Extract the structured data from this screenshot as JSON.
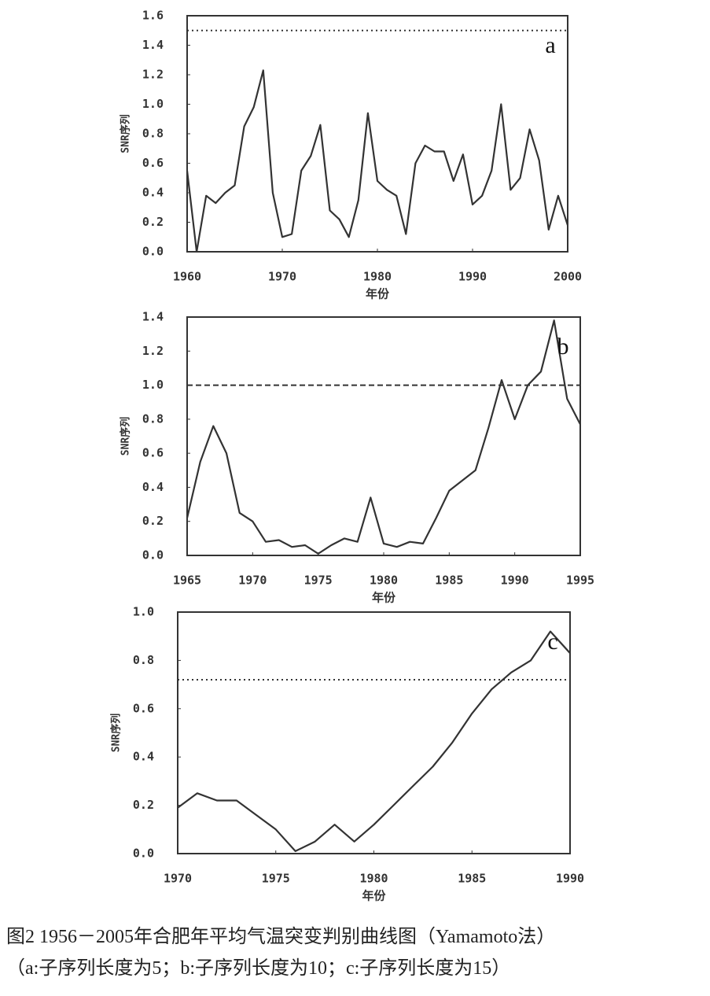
{
  "chart_data": [
    {
      "type": "line",
      "panel_label": "a",
      "y_label": "SNR序列",
      "x_label": "年份",
      "x": [
        1960,
        1961,
        1962,
        1963,
        1964,
        1965,
        1966,
        1967,
        1968,
        1969,
        1970,
        1971,
        1972,
        1973,
        1974,
        1975,
        1976,
        1977,
        1978,
        1979,
        1980,
        1981,
        1982,
        1983,
        1984,
        1985,
        1986,
        1987,
        1988,
        1989,
        1990,
        1991,
        1992,
        1993,
        1994,
        1995,
        1996,
        1997,
        1998,
        1999,
        2000
      ],
      "series": [
        {
          "color": "#333333",
          "values": [
            0.55,
            0.0,
            0.38,
            0.33,
            0.4,
            0.45,
            0.85,
            0.98,
            1.23,
            0.4,
            0.1,
            0.12,
            0.55,
            0.65,
            0.86,
            0.28,
            0.22,
            0.1,
            0.35,
            0.94,
            0.48,
            0.42,
            0.38,
            0.12,
            0.6,
            0.72,
            0.68,
            0.68,
            0.48,
            0.66,
            0.32,
            0.38,
            0.55,
            1.0,
            0.42,
            0.5,
            0.83,
            0.62,
            0.15,
            0.38,
            0.18
          ]
        }
      ],
      "threshold": {
        "value": 1.5,
        "style": "dotted"
      },
      "xlim": [
        1960,
        2000
      ],
      "xticks": [
        1960,
        1970,
        1980,
        1990,
        2000
      ],
      "ylim": [
        0,
        1.6
      ],
      "yticks": [
        {
          "value": 0,
          "label": "0.0"
        },
        0.2,
        0.4,
        0.6,
        0.8,
        {
          "value": 1,
          "label": "1.0"
        },
        1.2,
        1.4,
        1.6
      ]
    },
    {
      "type": "line",
      "panel_label": "b",
      "y_label": "SNR序列",
      "x_label": "年份",
      "x": [
        1965,
        1966,
        1967,
        1968,
        1969,
        1970,
        1971,
        1972,
        1973,
        1974,
        1975,
        1976,
        1977,
        1978,
        1979,
        1980,
        1981,
        1982,
        1983,
        1984,
        1985,
        1986,
        1987,
        1988,
        1989,
        1990,
        1991,
        1992,
        1993,
        1994,
        1995
      ],
      "series": [
        {
          "color": "#333333",
          "values": [
            0.22,
            0.55,
            0.76,
            0.6,
            0.25,
            0.2,
            0.08,
            0.09,
            0.05,
            0.06,
            0.01,
            0.06,
            0.1,
            0.08,
            0.34,
            0.07,
            0.05,
            0.08,
            0.07,
            0.22,
            0.38,
            0.44,
            0.5,
            0.75,
            1.03,
            0.8,
            1.0,
            1.08,
            1.38,
            0.92,
            0.77
          ]
        }
      ],
      "threshold": {
        "value": 1.0,
        "style": "dashed"
      },
      "xlim": [
        1965,
        1995
      ],
      "xticks": [
        1965,
        1970,
        1975,
        1980,
        1985,
        1990,
        1995
      ],
      "ylim": [
        0,
        1.4
      ],
      "yticks": [
        {
          "value": 0,
          "label": "0.0"
        },
        0.2,
        0.4,
        0.6,
        0.8,
        {
          "value": 1,
          "label": "1.0"
        },
        1.2,
        1.4
      ]
    },
    {
      "type": "line",
      "panel_label": "c",
      "y_label": "SNR序列",
      "x_label": "年份",
      "x": [
        1970,
        1971,
        1972,
        1973,
        1974,
        1975,
        1976,
        1977,
        1978,
        1979,
        1980,
        1981,
        1982,
        1983,
        1984,
        1985,
        1986,
        1987,
        1988,
        1989,
        1990
      ],
      "series": [
        {
          "color": "#333333",
          "values": [
            0.19,
            0.25,
            0.22,
            0.22,
            0.16,
            0.1,
            0.01,
            0.05,
            0.12,
            0.05,
            0.12,
            0.2,
            0.28,
            0.36,
            0.46,
            0.58,
            0.68,
            0.75,
            0.8,
            0.92,
            0.83
          ]
        }
      ],
      "threshold": {
        "value": 0.72,
        "style": "dotted"
      },
      "xlim": [
        1970,
        1990
      ],
      "xticks": [
        1970,
        1975,
        1980,
        1985,
        1990
      ],
      "ylim": [
        0,
        1.0
      ],
      "yticks": [
        {
          "value": 0,
          "label": "0.0"
        },
        0.2,
        0.4,
        0.6,
        0.8,
        {
          "value": 1,
          "label": "1.0"
        }
      ]
    }
  ],
  "caption": [
    "图2 1956－2005年合肥年平均气温突变判别曲线图（Yamamoto法）",
    "（a:子序列长度为5；b:子序列长度为10；c:子序列长度为15）"
  ]
}
